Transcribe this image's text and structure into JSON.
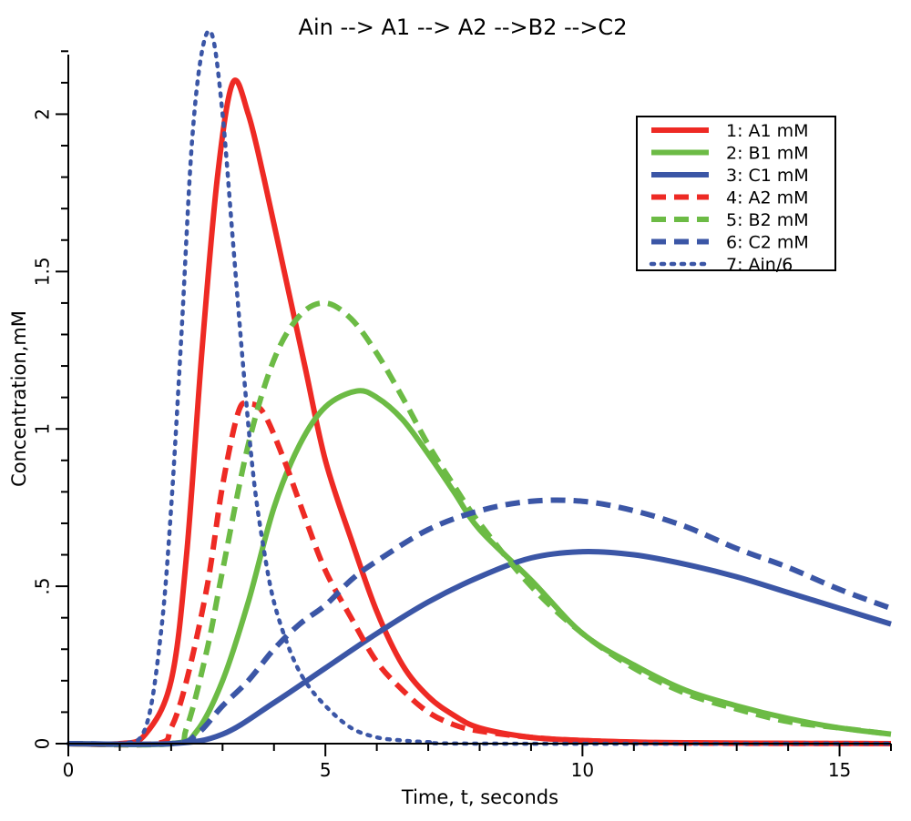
{
  "chart_data": {
    "type": "line",
    "title": "Ain --> A1 --> A2 -->B2 -->C2",
    "xlabel": "Time, t, seconds",
    "ylabel": "Concentration,mM",
    "xlim": [
      0,
      16
    ],
    "ylim": [
      0,
      2.25
    ],
    "xticks": [
      0,
      5,
      10,
      15
    ],
    "xtick_labels": [
      "0",
      "5",
      "10",
      "15"
    ],
    "yticks": [
      0,
      0.5,
      1,
      1.5,
      2
    ],
    "ytick_labels": [
      "0",
      ".5",
      "1",
      "1.5",
      "2"
    ],
    "grid": false,
    "legend_position": "top-right",
    "series": [
      {
        "name": "1: A1 mM",
        "color": "#ee2a24",
        "style": "solid",
        "x": [
          0,
          1,
          1.5,
          2,
          2.3,
          2.6,
          2.9,
          3.2,
          3.5,
          3.8,
          4.2,
          4.6,
          5,
          5.5,
          6,
          6.5,
          7,
          7.5,
          8,
          9,
          10,
          11,
          12,
          14,
          16
        ],
        "y": [
          0,
          0,
          0.03,
          0.2,
          0.6,
          1.25,
          1.8,
          2.1,
          2.0,
          1.8,
          1.5,
          1.2,
          0.9,
          0.65,
          0.42,
          0.25,
          0.15,
          0.09,
          0.05,
          0.02,
          0.01,
          0.005,
          0.003,
          0.001,
          0
        ]
      },
      {
        "name": "2: B1 mM",
        "color": "#6cbb45",
        "style": "solid",
        "x": [
          0,
          2,
          2.5,
          3,
          3.5,
          4,
          4.5,
          5,
          5.6,
          6,
          6.5,
          7,
          7.5,
          8,
          9,
          10,
          11,
          12,
          13,
          14,
          15,
          16
        ],
        "y": [
          0,
          0,
          0.04,
          0.2,
          0.45,
          0.75,
          0.95,
          1.07,
          1.12,
          1.1,
          1.03,
          0.92,
          0.8,
          0.68,
          0.52,
          0.35,
          0.25,
          0.17,
          0.12,
          0.08,
          0.05,
          0.03
        ]
      },
      {
        "name": "3: C1 mM",
        "color": "#3b56a6",
        "style": "solid",
        "x": [
          0,
          2,
          3,
          4,
          5,
          6,
          7,
          8,
          9,
          10,
          11,
          12,
          13,
          14,
          15,
          16
        ],
        "y": [
          0,
          0,
          0.03,
          0.13,
          0.24,
          0.35,
          0.45,
          0.53,
          0.59,
          0.61,
          0.6,
          0.57,
          0.53,
          0.48,
          0.43,
          0.38
        ]
      },
      {
        "name": "4: A2 mM",
        "color": "#ee2a24",
        "style": "dashed",
        "x": [
          0,
          1.7,
          2,
          2.3,
          2.7,
          3,
          3.3,
          3.5,
          3.8,
          4.2,
          4.6,
          5,
          5.5,
          6,
          6.5,
          7,
          7.5,
          8,
          9,
          10,
          12,
          16
        ],
        "y": [
          0,
          0,
          0.05,
          0.2,
          0.5,
          0.82,
          1.05,
          1.08,
          1.05,
          0.9,
          0.72,
          0.55,
          0.4,
          0.26,
          0.17,
          0.1,
          0.06,
          0.04,
          0.02,
          0.01,
          0.002,
          0
        ]
      },
      {
        "name": "5: B2 mM",
        "color": "#6cbb45",
        "style": "dashed",
        "x": [
          0,
          2,
          2.3,
          2.7,
          3,
          3.5,
          4,
          4.5,
          5,
          5.5,
          6,
          6.5,
          7,
          7.5,
          8,
          9,
          10,
          11,
          12,
          13,
          14,
          15,
          16
        ],
        "y": [
          0,
          0,
          0.05,
          0.3,
          0.55,
          0.95,
          1.22,
          1.36,
          1.4,
          1.35,
          1.24,
          1.1,
          0.95,
          0.82,
          0.7,
          0.5,
          0.35,
          0.24,
          0.16,
          0.11,
          0.07,
          0.05,
          0.03
        ]
      },
      {
        "name": "6: C2 mM",
        "color": "#3b56a6",
        "style": "dashed",
        "x": [
          0,
          2,
          2.5,
          3,
          3.5,
          4,
          4.5,
          5,
          5.5,
          6,
          7,
          8,
          9,
          10,
          11,
          12,
          13,
          14,
          15,
          16
        ],
        "y": [
          0,
          0,
          0.03,
          0.12,
          0.2,
          0.3,
          0.38,
          0.44,
          0.52,
          0.58,
          0.68,
          0.74,
          0.77,
          0.77,
          0.74,
          0.69,
          0.62,
          0.56,
          0.49,
          0.43
        ]
      },
      {
        "name": "7: Ain/6",
        "color": "#3b56a6",
        "style": "dotted",
        "x": [
          0,
          1,
          1.5,
          1.8,
          2,
          2.2,
          2.4,
          2.6,
          2.8,
          3,
          3.2,
          3.4,
          3.6,
          3.8,
          4,
          4.3,
          4.6,
          5,
          5.5,
          6,
          6.5,
          7,
          8,
          16
        ],
        "y": [
          0,
          0,
          0.05,
          0.35,
          0.75,
          1.3,
          1.9,
          2.2,
          2.25,
          2.0,
          1.6,
          1.2,
          0.85,
          0.62,
          0.45,
          0.3,
          0.2,
          0.12,
          0.05,
          0.02,
          0.01,
          0.005,
          0,
          0
        ]
      }
    ]
  }
}
